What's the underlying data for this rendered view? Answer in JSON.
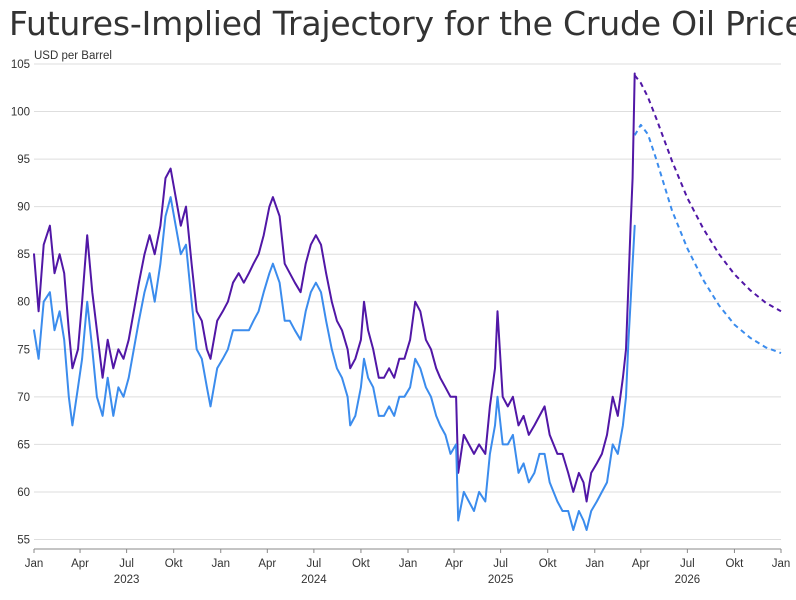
{
  "chart_data": {
    "type": "line",
    "title": "Futures-Implied Trajectory for the Crude Oil Prices",
    "ylabel": "USD per Barrel",
    "xlabel": "",
    "ylim": [
      54,
      105
    ],
    "xlim": [
      "2023-01-01",
      "2026-12-31"
    ],
    "grid": "horizontal",
    "colors": {
      "purple": "#5117a6",
      "blue": "#3b8ced",
      "grid": "#dedede",
      "axis": "#888888"
    },
    "y_ticks": [
      55,
      60,
      65,
      70,
      75,
      80,
      85,
      90,
      95,
      100,
      105
    ],
    "x_ticks": [
      {
        "date": "2023-01-01",
        "label": "Jan"
      },
      {
        "date": "2023-04-01",
        "label": "Apr"
      },
      {
        "date": "2023-07-01",
        "label": "Jul"
      },
      {
        "date": "2023-10-01",
        "label": "Okt"
      },
      {
        "date": "2024-01-01",
        "label": "Jan"
      },
      {
        "date": "2024-04-01",
        "label": "Apr"
      },
      {
        "date": "2024-07-01",
        "label": "Jul"
      },
      {
        "date": "2024-10-01",
        "label": "Okt"
      },
      {
        "date": "2025-01-01",
        "label": "Jan"
      },
      {
        "date": "2025-04-01",
        "label": "Apr"
      },
      {
        "date": "2025-07-01",
        "label": "Jul"
      },
      {
        "date": "2025-10-01",
        "label": "Okt"
      },
      {
        "date": "2026-01-01",
        "label": "Jan"
      },
      {
        "date": "2026-04-01",
        "label": "Apr"
      },
      {
        "date": "2026-07-01",
        "label": "Jul"
      },
      {
        "date": "2026-10-01",
        "label": "Okt"
      },
      {
        "date": "2026-12-31",
        "label": "Jan"
      }
    ],
    "x_year_labels": [
      {
        "date": "2023-07-01",
        "label": "2023"
      },
      {
        "date": "2024-07-01",
        "label": "2024"
      },
      {
        "date": "2025-07-01",
        "label": "2025"
      },
      {
        "date": "2026-07-01",
        "label": "2026"
      }
    ],
    "series": [
      {
        "style": "solid",
        "color": "#5117a6",
        "x": [
          "2023-01-01",
          "2023-01-10",
          "2023-01-20",
          "2023-02-01",
          "2023-02-10",
          "2023-02-20",
          "2023-03-01",
          "2023-03-10",
          "2023-03-17",
          "2023-03-28",
          "2023-04-05",
          "2023-04-15",
          "2023-04-25",
          "2023-05-04",
          "2023-05-15",
          "2023-05-25",
          "2023-06-05",
          "2023-06-15",
          "2023-06-25",
          "2023-07-05",
          "2023-07-15",
          "2023-07-25",
          "2023-08-05",
          "2023-08-15",
          "2023-08-25",
          "2023-09-05",
          "2023-09-15",
          "2023-09-25",
          "2023-10-05",
          "2023-10-15",
          "2023-10-25",
          "2023-11-05",
          "2023-11-15",
          "2023-11-25",
          "2023-12-05",
          "2023-12-12",
          "2023-12-25",
          "2024-01-05",
          "2024-01-15",
          "2024-01-25",
          "2024-02-05",
          "2024-02-15",
          "2024-02-25",
          "2024-03-05",
          "2024-03-15",
          "2024-03-25",
          "2024-04-05",
          "2024-04-12",
          "2024-04-25",
          "2024-05-05",
          "2024-05-15",
          "2024-05-25",
          "2024-06-05",
          "2024-06-15",
          "2024-06-25",
          "2024-07-05",
          "2024-07-15",
          "2024-07-25",
          "2024-08-05",
          "2024-08-15",
          "2024-08-25",
          "2024-09-05",
          "2024-09-10",
          "2024-09-20",
          "2024-10-01",
          "2024-10-07",
          "2024-10-15",
          "2024-10-25",
          "2024-11-05",
          "2024-11-15",
          "2024-11-25",
          "2024-12-05",
          "2024-12-15",
          "2024-12-25",
          "2025-01-05",
          "2025-01-15",
          "2025-01-25",
          "2025-02-05",
          "2025-02-15",
          "2025-02-25",
          "2025-03-05",
          "2025-03-15",
          "2025-03-25",
          "2025-04-05",
          "2025-04-09",
          "2025-04-20",
          "2025-04-30",
          "2025-05-10",
          "2025-05-20",
          "2025-06-01",
          "2025-06-10",
          "2025-06-20",
          "2025-06-25",
          "2025-07-05",
          "2025-07-15",
          "2025-07-25",
          "2025-08-05",
          "2025-08-15",
          "2025-08-25",
          "2025-09-05",
          "2025-09-15",
          "2025-09-25",
          "2025-10-05",
          "2025-10-20",
          "2025-10-30",
          "2025-11-10",
          "2025-11-20",
          "2025-12-01",
          "2025-12-10",
          "2025-12-16",
          "2025-12-25",
          "2026-01-05",
          "2026-01-15",
          "2026-01-25",
          "2026-02-05",
          "2026-02-15",
          "2026-02-25",
          "2026-03-03",
          "2026-03-08",
          "2026-03-12",
          "2026-03-16",
          "2026-03-20"
        ],
        "y": [
          85,
          79,
          86,
          88,
          83,
          85,
          83,
          77,
          73,
          75,
          80,
          87,
          81,
          77,
          72,
          76,
          73,
          75,
          74,
          76,
          79,
          82,
          85,
          87,
          85,
          88,
          93,
          94,
          91,
          88,
          90,
          84,
          79,
          78,
          75,
          74,
          78,
          79,
          80,
          82,
          83,
          82,
          83,
          84,
          85,
          87,
          90,
          91,
          89,
          84,
          83,
          82,
          81,
          84,
          86,
          87,
          86,
          83,
          80,
          78,
          77,
          75,
          73,
          74,
          76,
          80,
          77,
          75,
          72,
          72,
          73,
          72,
          74,
          74,
          76,
          80,
          79,
          76,
          75,
          73,
          72,
          71,
          70,
          70,
          62,
          66,
          65,
          64,
          65,
          64,
          69,
          73,
          79,
          70,
          69,
          70,
          67,
          68,
          66,
          67,
          68,
          69,
          66,
          64,
          64,
          62,
          60,
          62,
          61,
          59,
          62,
          63,
          64,
          66,
          70,
          68,
          72,
          75,
          82,
          88,
          93,
          104
        ]
      },
      {
        "style": "solid",
        "color": "#3b8ced",
        "x": [
          "2023-01-01",
          "2023-01-10",
          "2023-01-20",
          "2023-02-01",
          "2023-02-10",
          "2023-02-20",
          "2023-03-01",
          "2023-03-10",
          "2023-03-17",
          "2023-03-28",
          "2023-04-05",
          "2023-04-15",
          "2023-04-25",
          "2023-05-04",
          "2023-05-15",
          "2023-05-25",
          "2023-06-05",
          "2023-06-15",
          "2023-06-25",
          "2023-07-05",
          "2023-07-15",
          "2023-07-25",
          "2023-08-05",
          "2023-08-15",
          "2023-08-25",
          "2023-09-05",
          "2023-09-15",
          "2023-09-25",
          "2023-10-05",
          "2023-10-15",
          "2023-10-25",
          "2023-11-05",
          "2023-11-15",
          "2023-11-25",
          "2023-12-05",
          "2023-12-12",
          "2023-12-25",
          "2024-01-05",
          "2024-01-15",
          "2024-01-25",
          "2024-02-05",
          "2024-02-15",
          "2024-02-25",
          "2024-03-05",
          "2024-03-15",
          "2024-03-25",
          "2024-04-05",
          "2024-04-12",
          "2024-04-25",
          "2024-05-05",
          "2024-05-15",
          "2024-05-25",
          "2024-06-05",
          "2024-06-15",
          "2024-06-25",
          "2024-07-05",
          "2024-07-15",
          "2024-07-25",
          "2024-08-05",
          "2024-08-15",
          "2024-08-25",
          "2024-09-05",
          "2024-09-10",
          "2024-09-20",
          "2024-10-01",
          "2024-10-07",
          "2024-10-15",
          "2024-10-25",
          "2024-11-05",
          "2024-11-15",
          "2024-11-25",
          "2024-12-05",
          "2024-12-15",
          "2024-12-25",
          "2025-01-05",
          "2025-01-15",
          "2025-01-25",
          "2025-02-05",
          "2025-02-15",
          "2025-02-25",
          "2025-03-05",
          "2025-03-15",
          "2025-03-25",
          "2025-04-05",
          "2025-04-09",
          "2025-04-20",
          "2025-04-30",
          "2025-05-10",
          "2025-05-20",
          "2025-06-01",
          "2025-06-10",
          "2025-06-20",
          "2025-06-25",
          "2025-07-05",
          "2025-07-15",
          "2025-07-25",
          "2025-08-05",
          "2025-08-15",
          "2025-08-25",
          "2025-09-05",
          "2025-09-15",
          "2025-09-25",
          "2025-10-05",
          "2025-10-20",
          "2025-10-30",
          "2025-11-10",
          "2025-11-20",
          "2025-12-01",
          "2025-12-10",
          "2025-12-16",
          "2025-12-25",
          "2026-01-05",
          "2026-01-15",
          "2026-01-25",
          "2026-02-05",
          "2026-02-15",
          "2026-02-25",
          "2026-03-03",
          "2026-03-08",
          "2026-03-12",
          "2026-03-16",
          "2026-03-20"
        ],
        "y": [
          77,
          74,
          80,
          81,
          77,
          79,
          76,
          70,
          67,
          71,
          74,
          80,
          75,
          70,
          68,
          72,
          68,
          71,
          70,
          72,
          75,
          78,
          81,
          83,
          80,
          84,
          89,
          91,
          88,
          85,
          86,
          80,
          75,
          74,
          71,
          69,
          73,
          74,
          75,
          77,
          77,
          77,
          77,
          78,
          79,
          81,
          83,
          84,
          82,
          78,
          78,
          77,
          76,
          79,
          81,
          82,
          81,
          78,
          75,
          73,
          72,
          70,
          67,
          68,
          71,
          74,
          72,
          71,
          68,
          68,
          69,
          68,
          70,
          70,
          71,
          74,
          73,
          71,
          70,
          68,
          67,
          66,
          64,
          65,
          57,
          60,
          59,
          58,
          60,
          59,
          64,
          67,
          70,
          65,
          65,
          66,
          62,
          63,
          61,
          62,
          64,
          64,
          61,
          59,
          58,
          58,
          56,
          58,
          57,
          56,
          58,
          59,
          60,
          61,
          65,
          64,
          67,
          70,
          76,
          80,
          84,
          88
        ]
      },
      {
        "style": "dashed",
        "color": "#5117a6",
        "x": [
          "2026-03-20",
          "2026-04-01",
          "2026-04-15",
          "2026-05-01",
          "2026-06-01",
          "2026-07-01",
          "2026-08-01",
          "2026-09-01",
          "2026-10-01",
          "2026-11-01",
          "2026-12-01",
          "2026-12-31"
        ],
        "y": [
          103.8,
          103,
          101.5,
          99.3,
          94.8,
          90.9,
          87.7,
          85,
          82.9,
          81.2,
          79.9,
          79
        ]
      },
      {
        "style": "dashed",
        "color": "#3b8ced",
        "x": [
          "2026-03-20",
          "2026-04-01",
          "2026-04-15",
          "2026-05-01",
          "2026-06-01",
          "2026-07-01",
          "2026-08-01",
          "2026-09-01",
          "2026-10-01",
          "2026-11-01",
          "2026-12-01",
          "2026-12-31"
        ],
        "y": [
          97.5,
          98.6,
          97.6,
          95,
          89.6,
          85.6,
          82.3,
          79.6,
          77.6,
          76.2,
          75.2,
          74.6
        ]
      }
    ]
  }
}
